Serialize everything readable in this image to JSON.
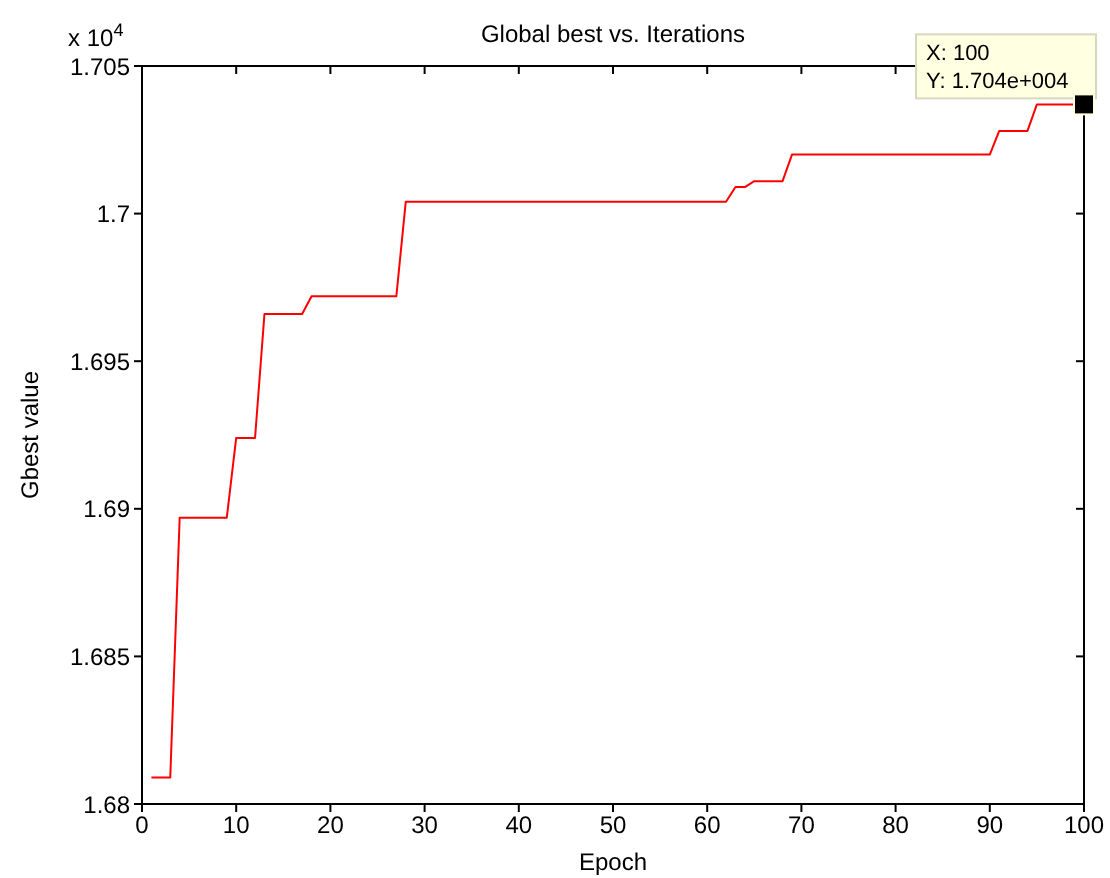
{
  "chart_data": {
    "type": "line",
    "title": "Global best vs. Iterations",
    "xlabel": "Epoch",
    "ylabel": "Gbest value",
    "x": [
      1,
      3,
      4,
      9,
      10,
      12,
      13,
      17,
      18,
      27,
      28,
      62,
      63,
      64,
      65,
      68,
      69,
      90,
      91,
      94,
      95,
      100
    ],
    "series": [
      {
        "color": "#ff0000",
        "values": [
          1.6809,
          1.6809,
          1.6897,
          1.6897,
          1.6924,
          1.6924,
          1.6966,
          1.6966,
          1.6972,
          1.6972,
          1.7004,
          1.7004,
          1.7009,
          1.7009,
          1.7011,
          1.7011,
          1.702,
          1.702,
          1.7028,
          1.7028,
          1.7037,
          1.7037
        ]
      }
    ],
    "xlim": [
      0,
      100
    ],
    "xticks": [
      0,
      10,
      20,
      30,
      40,
      50,
      60,
      70,
      80,
      90,
      100
    ],
    "ylim": [
      1.68,
      1.705
    ],
    "yticks": [
      1.68,
      1.685,
      1.69,
      1.695,
      1.7,
      1.705
    ],
    "annotations": [
      "x 10$^{4}$",
      {
        "text": "X: 100\nY: 1.704e+004",
        "x": 100,
        "y": 1.7037
      }
    ],
    "grid": false,
    "legend": false,
    "marker": "none",
    "line_style": "solid"
  }
}
